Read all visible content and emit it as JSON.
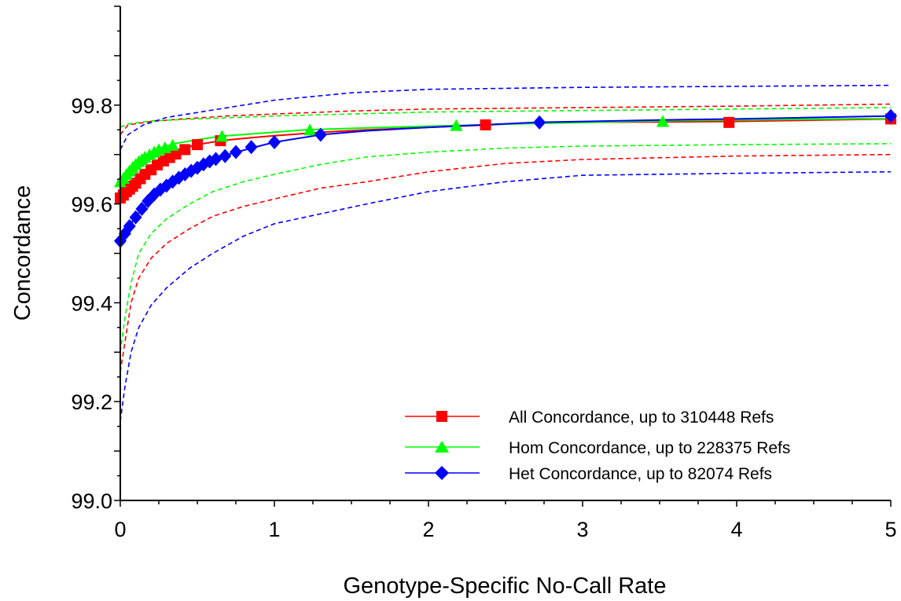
{
  "chart_data": {
    "type": "line",
    "xlabel": "Genotype-Specific No-Call Rate",
    "ylabel": "Concordance",
    "xlim": [
      0,
      5
    ],
    "ylim": [
      99.0,
      100.0
    ],
    "x_ticks": [
      0,
      1,
      2,
      3,
      4,
      5
    ],
    "x_tick_labels": [
      "0",
      "1",
      "2",
      "3",
      "4",
      "5"
    ],
    "y_ticks": [
      99.0,
      99.2,
      99.4,
      99.6,
      99.8
    ],
    "y_tick_labels": [
      "99.0",
      "99.2",
      "99.4",
      "99.6",
      "99.8"
    ],
    "grid": false,
    "legend_position": "bottom-right",
    "series": [
      {
        "name": "All Concordance, up to 310448 Refs",
        "color": "#ff0000",
        "marker": "square",
        "x": [
          0,
          0.02,
          0.05,
          0.08,
          0.1,
          0.15,
          0.2,
          0.25,
          0.3,
          0.35,
          0.4,
          0.5,
          0.65,
          0.85,
          1.0,
          1.3,
          1.6,
          2.0,
          2.4,
          2.7,
          3.5,
          3.95,
          5.0
        ],
        "y": [
          99.612,
          99.618,
          99.63,
          99.64,
          99.65,
          99.665,
          99.678,
          99.689,
          99.697,
          99.705,
          99.712,
          99.72,
          99.728,
          99.734,
          99.738,
          99.745,
          99.75,
          99.755,
          99.76,
          99.765,
          99.766,
          99.767,
          99.772
        ],
        "marker_x": [
          0,
          0.02,
          0.04,
          0.06,
          0.08,
          0.1,
          0.13,
          0.16,
          0.2,
          0.24,
          0.28,
          0.32,
          0.36,
          0.42,
          0.5,
          0.65,
          2.37,
          3.95,
          5.0
        ],
        "marker_y": [
          99.612,
          99.618,
          99.625,
          99.63,
          99.636,
          99.642,
          99.651,
          99.66,
          99.669,
          99.679,
          99.687,
          99.694,
          99.701,
          99.71,
          99.72,
          99.728,
          99.76,
          99.765,
          99.772
        ],
        "upper_ci": {
          "x": [
            0,
            0.05,
            0.2,
            0.4,
            0.7,
            1.0,
            1.5,
            2.0,
            3.0,
            4.0,
            5.0
          ],
          "y": [
            99.74,
            99.76,
            99.767,
            99.772,
            99.778,
            99.782,
            99.788,
            99.792,
            99.795,
            99.798,
            99.802
          ]
        },
        "lower_ci": {
          "x": [
            0,
            0.03,
            0.07,
            0.12,
            0.2,
            0.3,
            0.45,
            0.6,
            0.8,
            1.0,
            1.3,
            1.6,
            2.0,
            2.5,
            3.0,
            4.0,
            5.0
          ],
          "y": [
            99.26,
            99.32,
            99.4,
            99.45,
            99.49,
            99.52,
            99.55,
            99.575,
            99.595,
            99.61,
            99.632,
            99.645,
            99.665,
            99.682,
            99.69,
            99.697,
            99.7
          ]
        }
      },
      {
        "name": "Hom Concordance, up to 228375 Refs",
        "color": "#00ff00",
        "marker": "triangle",
        "x": [
          0,
          0.02,
          0.05,
          0.08,
          0.12,
          0.16,
          0.2,
          0.25,
          0.3,
          0.35,
          0.5,
          0.65,
          0.9,
          1.2,
          1.6,
          2.2,
          2.7,
          3.5,
          4.0,
          5.0
        ],
        "y": [
          99.645,
          99.655,
          99.668,
          99.678,
          99.69,
          99.698,
          99.705,
          99.712,
          99.717,
          99.722,
          99.73,
          99.737,
          99.743,
          99.75,
          99.754,
          99.759,
          99.763,
          99.768,
          99.77,
          99.773
        ],
        "marker_x": [
          0,
          0.02,
          0.04,
          0.06,
          0.08,
          0.1,
          0.12,
          0.14,
          0.16,
          0.19,
          0.22,
          0.25,
          0.29,
          0.34,
          0.66,
          1.23,
          2.18,
          3.52
        ],
        "marker_y": [
          99.645,
          99.652,
          99.66,
          99.667,
          99.674,
          99.68,
          99.686,
          99.69,
          99.695,
          99.7,
          99.705,
          99.71,
          99.714,
          99.719,
          99.737,
          99.75,
          99.759,
          99.767
        ],
        "upper_ci": {
          "x": [
            0,
            0.05,
            0.2,
            0.5,
            1.0,
            1.5,
            2.0,
            3.0,
            4.0,
            5.0
          ],
          "y": [
            99.755,
            99.762,
            99.768,
            99.772,
            99.778,
            99.782,
            99.786,
            99.789,
            99.792,
            99.795
          ]
        },
        "lower_ci": {
          "x": [
            0,
            0.03,
            0.07,
            0.12,
            0.2,
            0.3,
            0.45,
            0.6,
            0.8,
            1.0,
            1.3,
            1.6,
            2.0,
            2.5,
            3.0,
            4.0,
            5.0
          ],
          "y": [
            99.3,
            99.37,
            99.44,
            99.5,
            99.54,
            99.57,
            99.6,
            99.625,
            99.645,
            99.66,
            99.68,
            99.695,
            99.705,
            99.713,
            99.717,
            99.72,
            99.722
          ]
        }
      },
      {
        "name": "Het Concordance, up to 82074 Refs",
        "color": "#0000ff",
        "marker": "diamond",
        "x": [
          0,
          0.05,
          0.1,
          0.2,
          0.3,
          0.4,
          0.5,
          0.6,
          0.7,
          0.85,
          1.0,
          1.3,
          1.6,
          2.0,
          2.7,
          3.5,
          4.0,
          5.0
        ],
        "y": [
          99.525,
          99.55,
          99.575,
          99.61,
          99.635,
          99.655,
          99.675,
          99.69,
          99.7,
          99.713,
          99.725,
          99.74,
          99.748,
          99.755,
          99.765,
          99.77,
          99.772,
          99.778
        ],
        "marker_x": [
          0,
          0.03,
          0.06,
          0.1,
          0.14,
          0.18,
          0.22,
          0.26,
          0.3,
          0.34,
          0.38,
          0.42,
          0.46,
          0.5,
          0.54,
          0.58,
          0.62,
          0.68,
          0.75,
          0.85,
          1.0,
          1.3,
          2.72,
          5.0
        ],
        "marker_y": [
          99.525,
          99.54,
          99.555,
          99.573,
          99.59,
          99.606,
          99.619,
          99.629,
          99.637,
          99.645,
          99.653,
          99.66,
          99.667,
          99.673,
          99.68,
          99.686,
          99.691,
          99.697,
          99.705,
          99.715,
          99.725,
          99.74,
          99.765,
          99.778
        ],
        "upper_ci": {
          "x": [
            0,
            0.05,
            0.15,
            0.3,
            0.5,
            0.7,
            1.0,
            1.5,
            2.0,
            3.0,
            4.0,
            5.0
          ],
          "y": [
            99.71,
            99.74,
            99.76,
            99.775,
            99.785,
            99.795,
            99.81,
            99.825,
            99.832,
            99.836,
            99.838,
            99.84
          ]
        },
        "lower_ci": {
          "x": [
            0,
            0.03,
            0.07,
            0.12,
            0.2,
            0.3,
            0.45,
            0.6,
            0.8,
            1.0,
            1.3,
            1.6,
            2.0,
            2.5,
            3.0,
            4.0,
            5.0
          ],
          "y": [
            99.16,
            99.23,
            99.3,
            99.35,
            99.395,
            99.43,
            99.47,
            99.5,
            99.535,
            99.56,
            99.58,
            99.6,
            99.625,
            99.645,
            99.658,
            99.662,
            99.665
          ]
        }
      }
    ]
  }
}
